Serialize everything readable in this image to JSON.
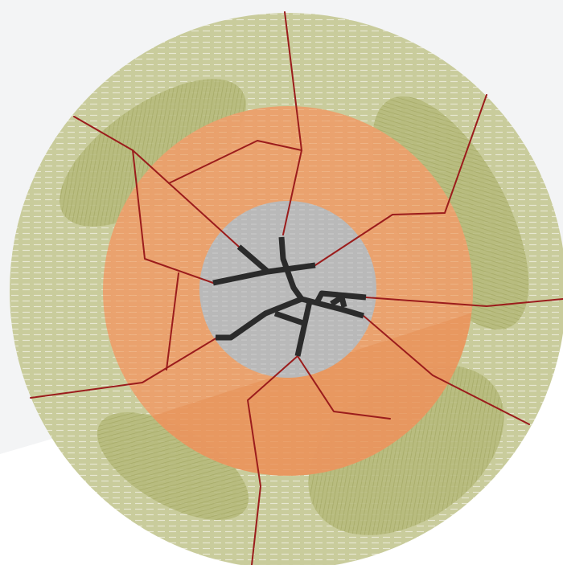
{
  "diagram": {
    "description_visible_text": "",
    "colors": {
      "page_background": "#ffffff",
      "backdrop_panel": "#f3f4f5",
      "outer_zone": "#c9cc9c",
      "outer_zone_stripe": "#e7e8d2",
      "patch": "#b5b97a",
      "patch_hatch": "#9ea35c",
      "middle_zone": "#eca06c",
      "middle_zone_shadow": "#e58f55",
      "inner_zone": "#b9b9b9",
      "inner_zone_stripe": "#cacaca",
      "thin_lines": "#9b1c1c",
      "thick_lines": "#2b2b2b"
    },
    "zones": [
      "outer-zone",
      "middle-zone",
      "inner-zone"
    ],
    "patch_count": 4,
    "thin_line_count": 12,
    "thick_line_count": 9
  }
}
